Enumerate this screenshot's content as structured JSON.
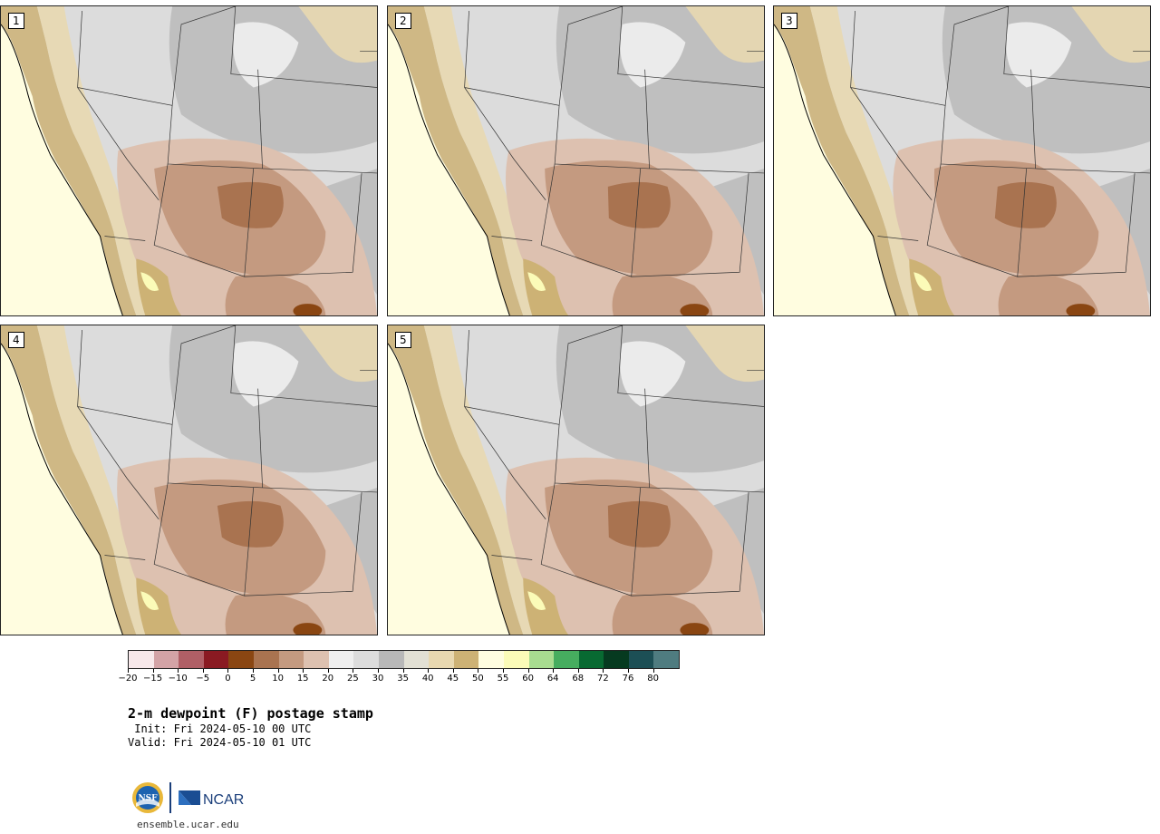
{
  "panels": [
    {
      "label": "1"
    },
    {
      "label": "2"
    },
    {
      "label": "3"
    },
    {
      "label": "4"
    },
    {
      "label": "5"
    }
  ],
  "colorbar": {
    "colors": [
      "#f7e8ea",
      "#d3a3a6",
      "#b05f66",
      "#8a1a22",
      "#8a4612",
      "#a97350",
      "#c49a80",
      "#ddc1b0",
      "#efefef",
      "#dcdcdc",
      "#b8b8b8",
      "#e2e0d4",
      "#e8d8b0",
      "#cdb275",
      "#fffde0",
      "#fbfbb8",
      "#a8dc90",
      "#46ad5f",
      "#086a32",
      "#063a20",
      "#1c4f55",
      "#4f7c80"
    ],
    "ticks": [
      "−20",
      "−15",
      "−10",
      "−5",
      "0",
      "5",
      "10",
      "15",
      "20",
      "25",
      "30",
      "35",
      "40",
      "45",
      "50",
      "55",
      "60",
      "64",
      "68",
      "72",
      "76",
      "80"
    ]
  },
  "title": "2-m dewpoint (F) postage stamp",
  "init_text": " Init: Fri 2024-05-10 00 UTC",
  "valid_text": "Valid: Fri 2024-05-10 01 UTC",
  "logos": {
    "nsf": "NSF",
    "ncar": "NCAR"
  },
  "site": "ensemble.ucar.edu"
}
